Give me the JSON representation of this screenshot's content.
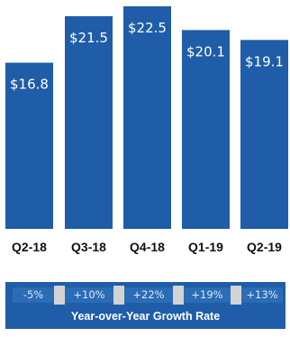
{
  "chart_data": {
    "type": "bar",
    "categories": [
      "Q2-18",
      "Q3-18",
      "Q4-18",
      "Q1-19",
      "Q2-19"
    ],
    "values": [
      16.8,
      21.5,
      22.5,
      20.1,
      19.1
    ],
    "value_labels": [
      "$16.8",
      "$21.5",
      "$22.5",
      "$20.1",
      "$19.1"
    ],
    "ylim": [
      0,
      22.5
    ],
    "bar_color": "#1f5da8",
    "grid": false
  },
  "growth": {
    "values": [
      "-5%",
      "+10%",
      "+22%",
      "+19%",
      "+13%"
    ],
    "title": "Year-over-Year Growth Rate",
    "panel_color": "#1f5da8",
    "separator_color": "#d3d3d3"
  }
}
